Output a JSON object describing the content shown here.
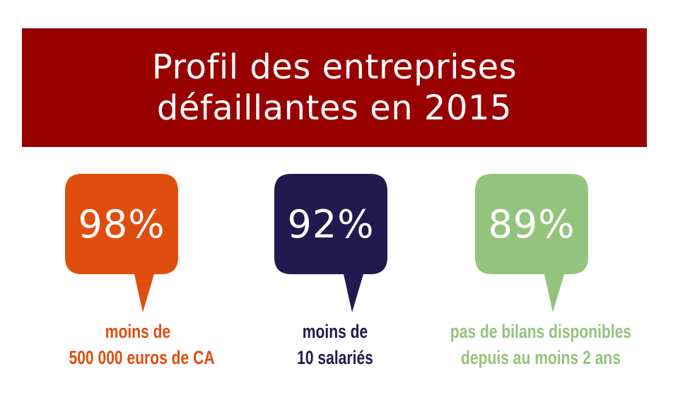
{
  "title": {
    "line1": "Profil des entreprises",
    "line2": "défaillantes en 2015"
  },
  "colors": {
    "banner": "#990000",
    "orange": "#E04E0E",
    "navy": "#221A4E",
    "green": "#93C47D"
  },
  "stats": [
    {
      "value": "98%",
      "caption_line1": "moins de",
      "caption_line2": "500 000 euros de CA",
      "color": "#E04E0E"
    },
    {
      "value": "92%",
      "caption_line1": "moins de",
      "caption_line2": "10 salariés",
      "color": "#221A4E"
    },
    {
      "value": "89%",
      "caption_line1": "pas de bilans disponibles",
      "caption_line2": "depuis au moins 2 ans",
      "color": "#93C47D"
    }
  ]
}
